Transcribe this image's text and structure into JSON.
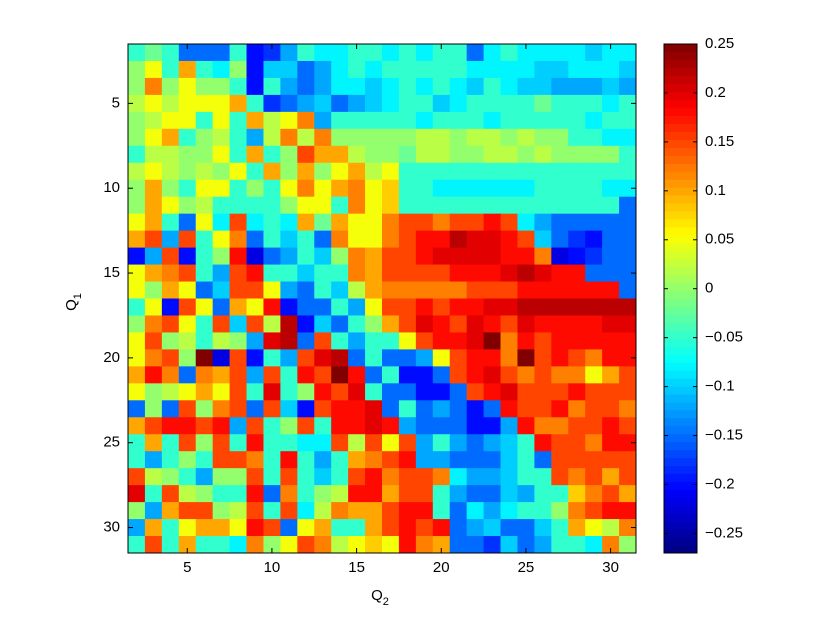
{
  "chart_data": {
    "type": "heatmap",
    "xlabel": "Q",
    "xlabel_sub": "2",
    "ylabel": "Q",
    "ylabel_sub": "1",
    "x": [
      2,
      3,
      4,
      5,
      6,
      7,
      8,
      9,
      10,
      11,
      12,
      13,
      14,
      15,
      16,
      17,
      18,
      19,
      20,
      21,
      22,
      23,
      24,
      25,
      26,
      27,
      28,
      29,
      30,
      31
    ],
    "y": [
      2,
      3,
      4,
      5,
      6,
      7,
      8,
      9,
      10,
      11,
      12,
      13,
      14,
      15,
      16,
      17,
      18,
      19,
      20,
      21,
      22,
      23,
      24,
      25,
      26,
      27,
      28,
      29,
      30,
      31
    ],
    "xlim": [
      1.5,
      31.5
    ],
    "ylim": [
      1.5,
      31.5
    ],
    "xticks": [
      5,
      10,
      15,
      20,
      25,
      30
    ],
    "yticks": [
      5,
      10,
      15,
      20,
      25,
      30
    ],
    "colormap": "jet",
    "clim": [
      -0.27,
      0.25
    ],
    "cticks": [
      {
        "value": -0.25,
        "label": "−0.25"
      },
      {
        "value": -0.2,
        "label": "−0.2"
      },
      {
        "value": -0.15,
        "label": "−0.15"
      },
      {
        "value": -0.1,
        "label": "−0.1"
      },
      {
        "value": -0.05,
        "label": "−0.05"
      },
      0,
      0.05,
      0.1,
      0.15,
      0.2,
      0.25
    ],
    "z": [
      [
        -0.05,
        -0.02,
        -0.05,
        -0.15,
        -0.15,
        -0.15,
        -0.05,
        -0.2,
        -0.18,
        -0.12,
        -0.05,
        -0.08,
        -0.08,
        -0.05,
        -0.05,
        -0.08,
        -0.05,
        -0.08,
        -0.05,
        -0.05,
        -0.15,
        -0.08,
        -0.05,
        -0.08,
        -0.08,
        -0.08,
        -0.08,
        -0.1,
        -0.08,
        -0.08
      ],
      [
        0.0,
        0.05,
        -0.05,
        0.1,
        -0.05,
        -0.08,
        0.0,
        -0.2,
        -0.1,
        -0.1,
        -0.15,
        -0.12,
        -0.08,
        -0.05,
        -0.08,
        -0.05,
        -0.05,
        -0.05,
        -0.05,
        -0.05,
        -0.08,
        -0.08,
        -0.08,
        -0.08,
        -0.1,
        -0.1,
        -0.08,
        -0.08,
        -0.08,
        -0.1
      ],
      [
        0.0,
        0.12,
        0.0,
        0.05,
        0.0,
        0.0,
        -0.05,
        -0.2,
        -0.05,
        -0.12,
        -0.15,
        -0.12,
        -0.08,
        -0.08,
        -0.1,
        -0.08,
        -0.05,
        -0.08,
        -0.05,
        -0.08,
        -0.1,
        -0.05,
        -0.08,
        -0.1,
        -0.1,
        -0.12,
        -0.12,
        -0.12,
        -0.1,
        -0.12
      ],
      [
        0.02,
        0.05,
        0.02,
        0.05,
        0.05,
        0.05,
        0.1,
        -0.05,
        -0.18,
        -0.15,
        -0.12,
        -0.1,
        -0.15,
        -0.12,
        -0.1,
        -0.08,
        -0.05,
        -0.05,
        -0.1,
        -0.08,
        -0.05,
        -0.05,
        -0.05,
        -0.05,
        -0.02,
        -0.05,
        -0.05,
        -0.05,
        -0.08,
        -0.05
      ],
      [
        0.0,
        0.02,
        0.05,
        0.05,
        -0.05,
        0.05,
        -0.05,
        0.1,
        0.02,
        0.05,
        0.12,
        -0.12,
        -0.05,
        -0.05,
        -0.05,
        -0.05,
        -0.05,
        -0.08,
        -0.05,
        -0.05,
        -0.05,
        -0.08,
        -0.05,
        -0.05,
        -0.05,
        -0.05,
        -0.05,
        -0.08,
        -0.05,
        -0.05
      ],
      [
        0.0,
        0.05,
        0.1,
        -0.05,
        0.0,
        0.02,
        -0.05,
        -0.12,
        0.02,
        0.12,
        0.02,
        0.12,
        0.0,
        0.0,
        0.0,
        0.0,
        0.0,
        0.02,
        0.02,
        0.0,
        0.02,
        0.02,
        0.0,
        0.02,
        0.0,
        0.0,
        -0.05,
        -0.05,
        -0.08,
        -0.08
      ],
      [
        -0.05,
        0.02,
        0.02,
        0.0,
        0.0,
        0.05,
        -0.05,
        0.1,
        -0.05,
        0.0,
        0.15,
        0.1,
        0.1,
        0.02,
        0.0,
        0.0,
        -0.02,
        0.02,
        0.02,
        0.0,
        0.0,
        0.02,
        0.02,
        0.0,
        0.02,
        0.0,
        0.0,
        0.0,
        0.0,
        -0.05
      ],
      [
        0.02,
        0.05,
        0.02,
        0.0,
        0.02,
        0.0,
        0.05,
        -0.05,
        0.1,
        0.0,
        0.1,
        0.0,
        0.05,
        0.1,
        0.02,
        0.05,
        -0.05,
        -0.05,
        -0.05,
        -0.05,
        -0.05,
        -0.05,
        -0.05,
        -0.05,
        -0.05,
        -0.05,
        -0.05,
        -0.05,
        -0.05,
        -0.05
      ],
      [
        0.0,
        0.1,
        0.0,
        -0.05,
        0.05,
        0.05,
        -0.05,
        0.0,
        -0.05,
        0.05,
        0.12,
        0.05,
        0.1,
        0.12,
        0.05,
        0.08,
        -0.05,
        -0.05,
        -0.08,
        -0.08,
        -0.08,
        -0.08,
        -0.08,
        -0.08,
        -0.05,
        -0.05,
        -0.05,
        -0.05,
        -0.08,
        -0.08
      ],
      [
        0.0,
        0.1,
        0.05,
        0.0,
        0.02,
        -0.05,
        -0.05,
        -0.05,
        -0.05,
        0.0,
        0.05,
        0.05,
        -0.05,
        0.12,
        0.05,
        0.08,
        -0.05,
        -0.05,
        -0.05,
        -0.05,
        -0.05,
        -0.05,
        -0.05,
        -0.05,
        -0.05,
        -0.05,
        -0.05,
        -0.05,
        -0.05,
        -0.15
      ],
      [
        0.05,
        0.1,
        -0.05,
        -0.15,
        0.05,
        -0.08,
        0.15,
        -0.08,
        -0.05,
        -0.08,
        0.1,
        -0.02,
        0.1,
        0.05,
        0.05,
        0.12,
        0.15,
        0.15,
        0.12,
        0.15,
        0.15,
        0.18,
        0.15,
        -0.08,
        -0.12,
        -0.15,
        -0.15,
        -0.15,
        -0.15,
        -0.15
      ],
      [
        0.1,
        0.15,
        -0.12,
        0.15,
        -0.05,
        0.05,
        0.12,
        -0.15,
        -0.05,
        -0.1,
        -0.05,
        -0.15,
        0.12,
        0.05,
        0.05,
        0.12,
        0.15,
        0.18,
        0.18,
        0.22,
        0.2,
        0.2,
        0.18,
        0.15,
        -0.1,
        -0.15,
        -0.18,
        -0.2,
        -0.15,
        -0.15
      ],
      [
        -0.2,
        -0.12,
        0.15,
        -0.2,
        -0.05,
        0.0,
        0.18,
        -0.22,
        -0.15,
        -0.12,
        -0.05,
        -0.1,
        0.0,
        0.12,
        0.1,
        0.15,
        0.15,
        0.18,
        0.2,
        0.2,
        0.2,
        0.2,
        0.18,
        0.18,
        0.12,
        -0.22,
        -0.2,
        -0.18,
        -0.15,
        -0.15
      ],
      [
        0.05,
        0.1,
        0.12,
        0.15,
        -0.05,
        -0.12,
        0.15,
        0.18,
        -0.05,
        -0.05,
        -0.1,
        -0.05,
        -0.05,
        0.12,
        0.1,
        0.15,
        0.15,
        0.15,
        0.15,
        0.18,
        0.18,
        0.18,
        0.2,
        0.22,
        0.2,
        0.18,
        0.18,
        -0.15,
        -0.15,
        -0.15
      ],
      [
        0.05,
        0.0,
        0.1,
        0.05,
        -0.15,
        -0.1,
        0.15,
        0.15,
        0.05,
        -0.12,
        -0.15,
        -0.05,
        -0.1,
        0.02,
        0.1,
        0.12,
        0.12,
        0.12,
        0.12,
        0.12,
        0.15,
        0.15,
        0.15,
        0.18,
        0.18,
        0.18,
        0.18,
        0.18,
        0.18,
        -0.15
      ],
      [
        -0.05,
        0.05,
        -0.2,
        0.15,
        0.05,
        -0.15,
        0.1,
        0.05,
        0.18,
        -0.2,
        -0.15,
        -0.15,
        -0.05,
        -0.12,
        0.05,
        0.15,
        0.15,
        0.18,
        0.15,
        0.18,
        0.18,
        0.2,
        0.2,
        0.22,
        0.22,
        0.22,
        0.22,
        0.22,
        0.22,
        0.22
      ],
      [
        0.0,
        0.12,
        0.15,
        0.05,
        -0.05,
        0.15,
        -0.1,
        0.15,
        0.02,
        0.22,
        -0.2,
        -0.1,
        -0.15,
        -0.05,
        0.0,
        0.1,
        0.15,
        0.2,
        0.18,
        0.15,
        0.2,
        0.18,
        0.15,
        0.2,
        0.18,
        0.18,
        0.18,
        0.18,
        0.2,
        0.2
      ],
      [
        0.05,
        0.15,
        0.0,
        0.02,
        -0.05,
        0.02,
        0.0,
        -0.12,
        0.2,
        0.22,
        -0.15,
        0.15,
        -0.05,
        -0.12,
        -0.05,
        -0.05,
        0.05,
        0.15,
        0.18,
        0.18,
        0.2,
        0.25,
        0.12,
        0.18,
        0.15,
        0.18,
        0.18,
        0.18,
        0.18,
        0.18
      ],
      [
        0.05,
        0.12,
        0.15,
        0.0,
        0.25,
        -0.22,
        0.15,
        -0.2,
        -0.05,
        -0.12,
        0.15,
        0.2,
        0.22,
        -0.15,
        -0.05,
        -0.15,
        -0.15,
        -0.12,
        0.05,
        0.15,
        0.18,
        0.18,
        0.12,
        0.25,
        0.15,
        0.18,
        0.15,
        0.12,
        0.18,
        0.18
      ],
      [
        0.1,
        0.18,
        0.12,
        -0.15,
        0.12,
        0.1,
        0.15,
        -0.12,
        0.15,
        -0.05,
        0.18,
        0.15,
        0.25,
        0.18,
        -0.15,
        -0.05,
        -0.2,
        -0.2,
        -0.15,
        0.15,
        0.18,
        0.2,
        0.15,
        0.12,
        0.15,
        0.12,
        0.12,
        0.05,
        0.1,
        0.15
      ],
      [
        0.05,
        0.0,
        0.02,
        0.05,
        0.1,
        0.05,
        0.15,
        -0.05,
        0.2,
        -0.05,
        0.0,
        0.18,
        0.15,
        0.2,
        -0.05,
        -0.15,
        -0.15,
        -0.2,
        -0.2,
        -0.15,
        0.15,
        0.18,
        0.2,
        0.15,
        0.15,
        0.15,
        0.18,
        0.15,
        0.15,
        0.15
      ],
      [
        -0.15,
        0.0,
        -0.15,
        0.15,
        0.0,
        0.12,
        0.15,
        -0.15,
        0.15,
        -0.1,
        -0.2,
        0.15,
        0.18,
        0.18,
        0.2,
        -0.15,
        -0.05,
        -0.15,
        -0.12,
        -0.15,
        -0.2,
        -0.15,
        0.18,
        0.15,
        0.15,
        0.18,
        0.12,
        0.15,
        0.15,
        0.12
      ],
      [
        0.1,
        0.15,
        0.18,
        0.18,
        0.15,
        0.18,
        -0.12,
        0.15,
        -0.05,
        0.0,
        0.15,
        -0.05,
        0.18,
        0.18,
        0.2,
        0.18,
        -0.12,
        -0.15,
        -0.15,
        -0.15,
        -0.2,
        -0.2,
        -0.12,
        0.18,
        0.12,
        0.12,
        0.15,
        0.15,
        0.18,
        0.15
      ],
      [
        -0.05,
        0.1,
        -0.05,
        0.15,
        0.0,
        0.15,
        -0.05,
        0.18,
        -0.05,
        -0.05,
        -0.08,
        -0.08,
        0.15,
        0.02,
        0.15,
        0.05,
        0.15,
        -0.12,
        -0.05,
        -0.12,
        -0.15,
        -0.12,
        -0.1,
        -0.05,
        0.18,
        0.15,
        0.15,
        0.12,
        0.18,
        0.18
      ],
      [
        -0.05,
        -0.12,
        -0.05,
        0.0,
        -0.05,
        0.15,
        0.15,
        0.12,
        -0.05,
        0.18,
        -0.05,
        -0.12,
        -0.05,
        0.1,
        0.12,
        0.15,
        0.18,
        -0.12,
        -0.12,
        -0.15,
        -0.15,
        -0.15,
        -0.1,
        -0.05,
        -0.15,
        0.15,
        0.15,
        0.15,
        0.15,
        0.15
      ],
      [
        0.15,
        0.02,
        0.0,
        -0.05,
        -0.12,
        0.0,
        0.0,
        0.15,
        -0.05,
        0.15,
        -0.05,
        -0.1,
        -0.05,
        0.15,
        0.18,
        0.12,
        0.15,
        0.15,
        0.12,
        -0.08,
        -0.12,
        -0.12,
        -0.1,
        -0.05,
        -0.05,
        0.15,
        0.12,
        0.15,
        0.1,
        0.15
      ],
      [
        0.2,
        -0.05,
        0.15,
        0.02,
        0.0,
        -0.05,
        -0.05,
        0.18,
        -0.15,
        0.12,
        -0.05,
        0.0,
        0.02,
        0.18,
        0.18,
        0.1,
        0.15,
        0.15,
        -0.05,
        -0.12,
        -0.15,
        -0.15,
        -0.1,
        -0.12,
        -0.05,
        -0.05,
        0.08,
        0.12,
        0.15,
        0.1
      ],
      [
        0.0,
        -0.12,
        0.1,
        0.15,
        0.15,
        0.0,
        0.02,
        0.15,
        -0.05,
        0.15,
        -0.08,
        0.02,
        0.12,
        0.1,
        0.1,
        0.15,
        0.18,
        0.18,
        -0.05,
        -0.15,
        -0.08,
        -0.12,
        -0.08,
        -0.05,
        -0.05,
        0.0,
        0.12,
        0.15,
        0.18,
        0.18
      ],
      [
        -0.12,
        0.1,
        -0.05,
        0.05,
        0.1,
        0.1,
        0.05,
        0.18,
        0.15,
        -0.15,
        0.05,
        0.1,
        -0.05,
        -0.05,
        0.1,
        0.15,
        0.18,
        0.15,
        0.18,
        -0.15,
        -0.12,
        -0.1,
        -0.15,
        -0.15,
        -0.1,
        -0.05,
        0.1,
        0.05,
        0.02,
        0.12
      ],
      [
        -0.05,
        0.15,
        -0.05,
        0.1,
        -0.05,
        -0.05,
        -0.08,
        0.12,
        0.0,
        0.05,
        0.15,
        0.12,
        0.02,
        0.05,
        0.08,
        0.05,
        0.18,
        0.12,
        0.1,
        -0.15,
        -0.15,
        -0.18,
        -0.1,
        -0.15,
        -0.12,
        -0.05,
        -0.05,
        -0.08,
        0.12,
        0.0
      ]
    ]
  }
}
